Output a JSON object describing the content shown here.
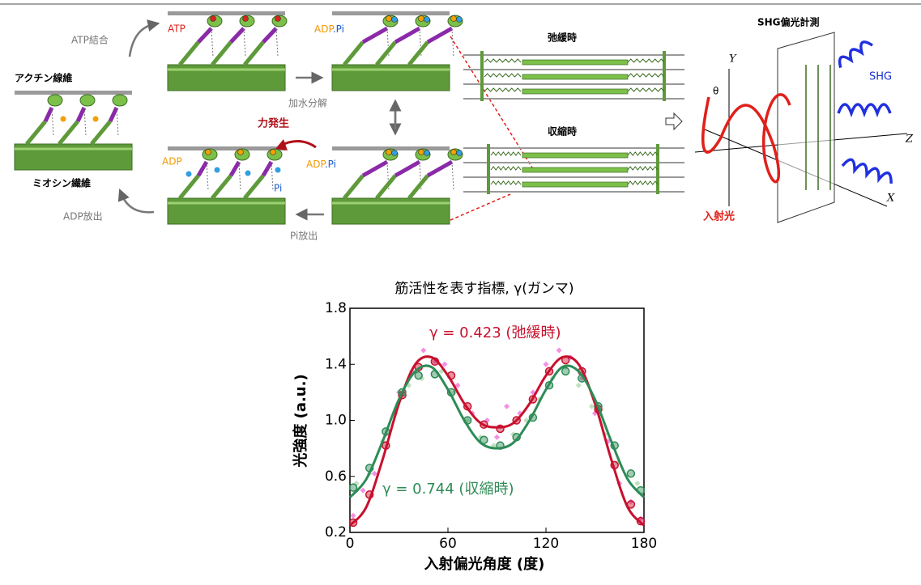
{
  "diagram": {
    "labels": [
      "アクチン線維",
      "ミオシン繊維",
      "ATP結合",
      "ATP",
      "ADP",
      ".Pi",
      "加水分解",
      "力発生",
      "ADP",
      "Pi",
      "ADP",
      ".Pi",
      "Pi放出",
      "ADP放出",
      "弛緩時",
      "収縮時",
      "SHG偏光計測",
      "Y",
      "θ",
      "SHG",
      "Z",
      "X",
      "入射光"
    ]
  },
  "chart_data": {
    "type": "line",
    "title": "筋活性を表す指標, γ(ガンマ)",
    "x_label": "入射偏光角度 (度)",
    "y_label": "光強度 (a.u.)",
    "annotations": [
      "γ = 0.423 (弛緩時)",
      "γ = 0.744 (収縮時)"
    ],
    "xlim": [
      0,
      180
    ],
    "ylim": [
      0.2,
      1.8
    ],
    "xticks": [
      0,
      60,
      120,
      180
    ],
    "yticks": [
      0.2,
      0.6,
      {
        "value": 1.0,
        "label": "1.0"
      },
      1.4,
      1.8
    ],
    "series": [
      {
        "color": "#f26ad8",
        "style": "diamonds",
        "x": [
          2,
          8,
          15,
          22,
          30,
          38,
          45,
          52,
          58,
          66,
          75,
          84,
          90,
          96,
          104,
          112,
          120,
          128,
          135,
          142,
          150,
          158,
          165,
          172,
          178
        ],
        "values": [
          0.32,
          0.5,
          0.62,
          0.9,
          1.2,
          1.35,
          1.5,
          1.42,
          1.4,
          1.25,
          1.05,
          1.0,
          0.88,
          1.1,
          1.05,
          1.2,
          1.4,
          1.5,
          1.45,
          1.3,
          1.05,
          0.85,
          0.55,
          0.42,
          0.3
        ]
      },
      {
        "color": "#a8d6a8",
        "style": "diamonds",
        "x": [
          4,
          12,
          20,
          28,
          36,
          44,
          56,
          64,
          72,
          80,
          88,
          100,
          108,
          116,
          124,
          132,
          140,
          148,
          156,
          164,
          176
        ],
        "values": [
          0.55,
          0.62,
          0.85,
          1.05,
          1.25,
          1.3,
          1.35,
          1.2,
          1.0,
          0.88,
          0.82,
          0.9,
          1.0,
          1.15,
          1.3,
          1.38,
          1.25,
          1.1,
          0.9,
          0.7,
          0.55
        ]
      },
      {
        "color": "#c8102e",
        "style": "circles",
        "x": [
          2,
          12,
          22,
          32,
          42,
          52,
          62,
          72,
          82,
          92,
          102,
          112,
          122,
          132,
          142,
          152,
          162,
          172,
          178
        ],
        "values": [
          0.27,
          0.47,
          0.82,
          1.18,
          1.38,
          1.42,
          1.32,
          1.1,
          0.97,
          0.94,
          1.0,
          1.15,
          1.35,
          1.43,
          1.35,
          1.08,
          0.68,
          0.4,
          0.28
        ]
      },
      {
        "color": "#2e8b57",
        "style": "circles",
        "x": [
          2,
          12,
          22,
          32,
          42,
          52,
          62,
          72,
          82,
          92,
          102,
          112,
          122,
          132,
          142,
          152,
          162,
          172,
          178
        ],
        "values": [
          0.52,
          0.66,
          0.92,
          1.2,
          1.32,
          1.33,
          1.2,
          1.0,
          0.86,
          0.82,
          0.88,
          1.02,
          1.25,
          1.35,
          1.3,
          1.1,
          0.82,
          0.62,
          0.5
        ]
      },
      {
        "color": "#c8102e",
        "style": "line",
        "x": [
          0,
          10,
          20,
          30,
          40,
          50,
          60,
          70,
          80,
          90,
          100,
          110,
          120,
          130,
          140,
          150,
          160,
          170,
          180
        ],
        "values": [
          0.25,
          0.38,
          0.72,
          1.12,
          1.4,
          1.45,
          1.32,
          1.12,
          0.98,
          0.95,
          0.98,
          1.12,
          1.32,
          1.45,
          1.4,
          1.12,
          0.72,
          0.38,
          0.25
        ]
      },
      {
        "color": "#2e8b57",
        "style": "line",
        "x": [
          0,
          10,
          20,
          30,
          40,
          50,
          60,
          70,
          80,
          90,
          100,
          110,
          120,
          130,
          140,
          150,
          160,
          170,
          180
        ],
        "values": [
          0.45,
          0.58,
          0.85,
          1.15,
          1.35,
          1.38,
          1.22,
          1.0,
          0.84,
          0.8,
          0.84,
          1.0,
          1.22,
          1.38,
          1.35,
          1.15,
          0.85,
          0.58,
          0.45
        ]
      }
    ]
  }
}
